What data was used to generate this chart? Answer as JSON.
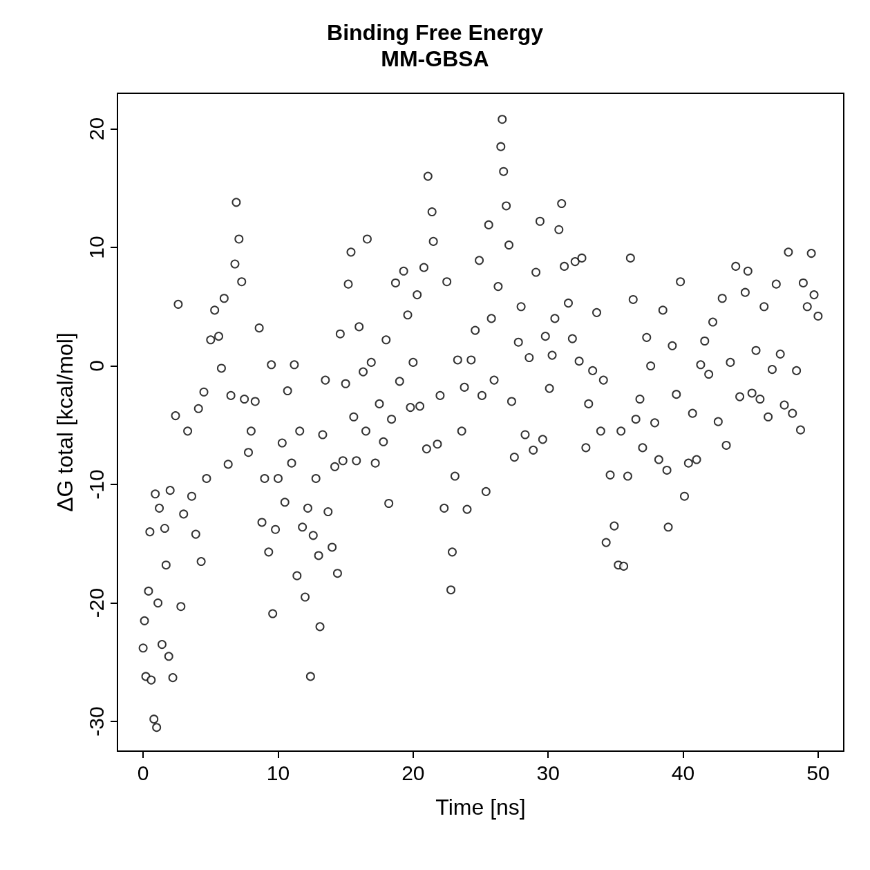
{
  "chart_data": {
    "type": "scatter",
    "title": "Binding Free Energy",
    "subtitle": "MM-GBSA",
    "xlabel": "Time [ns]",
    "ylabel": "ΔG total [kcal/mol]",
    "xlim": [
      -1.9,
      51.9
    ],
    "ylim": [
      -32.5,
      23
    ],
    "xticks": [
      0,
      10,
      20,
      30,
      40,
      50
    ],
    "yticks": [
      -30,
      -20,
      -10,
      0,
      10,
      20
    ],
    "grid": false,
    "marker": "circle",
    "series": [
      {
        "color": "#000000",
        "x": [
          0.0,
          0.1,
          0.2,
          0.4,
          0.5,
          0.6,
          0.8,
          0.9,
          1.0,
          1.1,
          1.2,
          1.4,
          1.6,
          1.7,
          1.9,
          2.0,
          2.2,
          2.4,
          2.6,
          2.8,
          3.0,
          3.3,
          3.6,
          3.9,
          4.1,
          4.3,
          4.5,
          4.7,
          5.0,
          5.3,
          5.6,
          5.8,
          6.0,
          6.3,
          6.5,
          6.8,
          6.9,
          7.1,
          7.3,
          7.5,
          7.8,
          8.0,
          8.3,
          8.6,
          8.8,
          9.0,
          9.3,
          9.5,
          9.6,
          9.8,
          10.0,
          10.3,
          10.5,
          10.7,
          11.0,
          11.2,
          11.4,
          11.6,
          11.8,
          12.0,
          12.2,
          12.4,
          12.6,
          12.8,
          13.0,
          13.1,
          13.3,
          13.5,
          13.7,
          14.0,
          14.2,
          14.4,
          14.6,
          14.8,
          15.0,
          15.2,
          15.4,
          15.6,
          15.8,
          16.0,
          16.3,
          16.5,
          16.6,
          16.9,
          17.2,
          17.5,
          17.8,
          18.0,
          18.2,
          18.4,
          18.7,
          19.0,
          19.3,
          19.6,
          19.8,
          20.0,
          20.3,
          20.5,
          20.8,
          21.0,
          21.1,
          21.4,
          21.5,
          21.8,
          22.0,
          22.3,
          22.5,
          22.8,
          22.9,
          23.1,
          23.3,
          23.6,
          23.8,
          24.0,
          24.3,
          24.6,
          24.9,
          25.1,
          25.4,
          25.6,
          25.8,
          26.0,
          26.3,
          26.5,
          26.6,
          26.7,
          26.9,
          27.1,
          27.3,
          27.5,
          27.8,
          28.0,
          28.3,
          28.6,
          28.9,
          29.1,
          29.4,
          29.6,
          29.8,
          30.1,
          30.3,
          30.5,
          30.8,
          31.0,
          31.2,
          31.5,
          31.8,
          32.0,
          32.3,
          32.5,
          32.8,
          33.0,
          33.3,
          33.6,
          33.9,
          34.1,
          34.3,
          34.6,
          34.9,
          35.2,
          35.4,
          35.6,
          35.9,
          36.1,
          36.3,
          36.5,
          36.8,
          37.0,
          37.3,
          37.6,
          37.9,
          38.2,
          38.5,
          38.8,
          38.9,
          39.2,
          39.5,
          39.8,
          40.1,
          40.4,
          40.7,
          41.0,
          41.3,
          41.6,
          41.9,
          42.2,
          42.6,
          42.9,
          43.2,
          43.5,
          43.9,
          44.2,
          44.6,
          44.8,
          45.1,
          45.4,
          45.7,
          46.0,
          46.3,
          46.6,
          46.9,
          47.2,
          47.5,
          47.8,
          48.1,
          48.4,
          48.7,
          48.9,
          49.2,
          49.5,
          49.7,
          50.0
        ],
        "values": [
          -23.8,
          -21.5,
          -26.2,
          -19,
          -14,
          -26.5,
          -29.8,
          -10.8,
          -30.5,
          -20,
          -12,
          -23.5,
          -13.7,
          -16.8,
          -24.5,
          -10.5,
          -26.3,
          -4.2,
          5.2,
          -20.3,
          -12.5,
          -5.5,
          -11,
          -14.2,
          -3.6,
          -16.5,
          -2.2,
          -9.5,
          2.2,
          4.7,
          2.5,
          -0.2,
          5.7,
          -8.3,
          -2.5,
          8.6,
          13.8,
          10.7,
          7.1,
          -2.8,
          -7.3,
          -5.5,
          -3,
          3.2,
          -13.2,
          -9.5,
          -15.7,
          0.1,
          -20.9,
          -13.8,
          -9.5,
          -6.5,
          -11.5,
          -2.1,
          -8.2,
          0.1,
          -17.7,
          -5.5,
          -13.6,
          -19.5,
          -12,
          -26.2,
          -14.3,
          -9.5,
          -16,
          -22,
          -5.8,
          -1.2,
          -12.3,
          -15.3,
          -8.5,
          -17.5,
          2.7,
          -8,
          -1.5,
          6.9,
          9.6,
          -4.3,
          -8,
          3.3,
          -0.5,
          -5.5,
          10.7,
          0.3,
          -8.2,
          -3.2,
          -6.4,
          2.2,
          -11.6,
          -4.5,
          7,
          -1.3,
          8,
          4.3,
          -3.5,
          0.3,
          6,
          -3.4,
          8.3,
          -7,
          16,
          13,
          10.5,
          -6.6,
          -2.5,
          -12,
          7.1,
          -18.9,
          -15.7,
          -9.3,
          0.5,
          -5.5,
          -1.8,
          -12.1,
          0.5,
          3,
          8.9,
          -2.5,
          -10.6,
          11.9,
          4,
          -1.2,
          6.7,
          18.5,
          20.8,
          16.4,
          13.5,
          10.2,
          -3,
          -7.7,
          2,
          5,
          -5.8,
          0.7,
          -7.1,
          7.9,
          12.2,
          -6.2,
          2.5,
          -1.9,
          0.9,
          4,
          11.5,
          13.7,
          8.4,
          5.3,
          2.3,
          8.8,
          0.4,
          9.1,
          -6.9,
          -3.2,
          -0.4,
          4.5,
          -5.5,
          -1.2,
          -14.9,
          -9.2,
          -13.5,
          -16.8,
          -5.5,
          -16.9,
          -9.3,
          9.1,
          5.6,
          -4.5,
          -2.8,
          -6.9,
          2.4,
          0,
          -4.8,
          -7.9,
          4.7,
          -8.8,
          -13.6,
          1.7,
          -2.4,
          7.1,
          -11,
          -8.2,
          -4,
          -7.9,
          0.1,
          2.1,
          -0.7,
          3.7,
          -4.7,
          5.7,
          -6.7,
          0.3,
          8.4,
          -2.6,
          6.2,
          8,
          -2.3,
          1.3,
          -2.8,
          5,
          -4.3,
          -0.3,
          6.9,
          1,
          -3.3,
          9.6,
          -4,
          -0.4,
          -5.4,
          7,
          5,
          9.5,
          6,
          4.2
        ]
      }
    ]
  }
}
